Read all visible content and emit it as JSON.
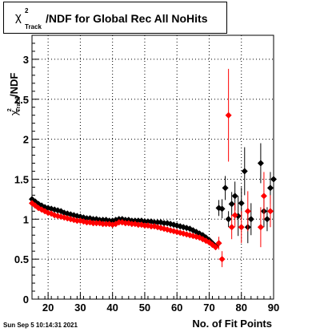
{
  "title": {
    "chi_symbol": "χ",
    "superscript": "2",
    "subscript": "Track",
    "main": "/NDF for Global Rec All NoHits"
  },
  "footer": {
    "timestamp": "Sun Sep  5 10:14:31 2021"
  },
  "chart_data": {
    "type": "scatter",
    "xlabel": "No. of Fit Points",
    "ylabel": {
      "symbol": "χ",
      "superscript": "2",
      "subscript": "Track",
      "suffix": "/NDF"
    },
    "xlim": [
      15,
      90
    ],
    "ylim": [
      0,
      3.3
    ],
    "x_ticks": [
      20,
      30,
      40,
      50,
      60,
      70,
      80,
      90
    ],
    "y_ticks": [
      0,
      0.5,
      1,
      1.5,
      2,
      2.5,
      3
    ],
    "y_tick_labels": [
      "0",
      "0.5",
      "1",
      "1.5",
      "2",
      "2.5",
      "3"
    ],
    "grid": true,
    "series": [
      {
        "color": "#000000",
        "points": [
          [
            15,
            1.25
          ],
          [
            16,
            1.22
          ],
          [
            17,
            1.19
          ],
          [
            18,
            1.17
          ],
          [
            19,
            1.15
          ],
          [
            20,
            1.14
          ],
          [
            21,
            1.13
          ],
          [
            22,
            1.12
          ],
          [
            23,
            1.11
          ],
          [
            24,
            1.1
          ],
          [
            25,
            1.08
          ],
          [
            26,
            1.07
          ],
          [
            27,
            1.06
          ],
          [
            28,
            1.05
          ],
          [
            29,
            1.04
          ],
          [
            30,
            1.03
          ],
          [
            31,
            1.02
          ],
          [
            32,
            1.01
          ],
          [
            33,
            1.01
          ],
          [
            34,
            1.0
          ],
          [
            35,
            1.0
          ],
          [
            36,
            0.99
          ],
          [
            37,
            0.99
          ],
          [
            38,
            0.99
          ],
          [
            39,
            0.98
          ],
          [
            40,
            0.98
          ],
          [
            41,
            0.99
          ],
          [
            42,
            1.0
          ],
          [
            43,
            1.0
          ],
          [
            44,
            0.99
          ],
          [
            45,
            0.99
          ],
          [
            46,
            0.98
          ],
          [
            47,
            0.98
          ],
          [
            48,
            0.98
          ],
          [
            49,
            0.98
          ],
          [
            50,
            0.97
          ],
          [
            51,
            0.97
          ],
          [
            52,
            0.97
          ],
          [
            53,
            0.96
          ],
          [
            54,
            0.96
          ],
          [
            55,
            0.96
          ],
          [
            56,
            0.95
          ],
          [
            57,
            0.95
          ],
          [
            58,
            0.94
          ],
          [
            59,
            0.93
          ],
          [
            60,
            0.92
          ],
          [
            61,
            0.91
          ],
          [
            62,
            0.9
          ],
          [
            63,
            0.89
          ],
          [
            64,
            0.88
          ],
          [
            65,
            0.86
          ],
          [
            66,
            0.84
          ],
          [
            67,
            0.82
          ],
          [
            68,
            0.8
          ],
          [
            69,
            0.77
          ],
          [
            70,
            0.74
          ],
          [
            71,
            0.7
          ],
          [
            72,
            0.66
          ],
          [
            73,
            1.14
          ],
          [
            74,
            1.13
          ],
          [
            75,
            1.39
          ],
          [
            76,
            1.0
          ],
          [
            77,
            1.19
          ],
          [
            78,
            1.29
          ],
          [
            79,
            1.04
          ],
          [
            80,
            1.2
          ],
          [
            81,
            1.6
          ],
          [
            82,
            0.9
          ],
          [
            83,
            1.0
          ],
          [
            86,
            1.7
          ],
          [
            87,
            1.1
          ],
          [
            88,
            1.0
          ],
          [
            89,
            1.39
          ],
          [
            90,
            1.5
          ]
        ],
        "errors": [
          [
            73,
            0.1
          ],
          [
            74,
            0.12
          ],
          [
            75,
            0.15
          ],
          [
            76,
            0.1
          ],
          [
            77,
            0.15
          ],
          [
            78,
            0.18
          ],
          [
            79,
            0.25
          ],
          [
            80,
            0.2
          ],
          [
            81,
            0.3
          ],
          [
            82,
            0.2
          ],
          [
            83,
            0.2
          ],
          [
            86,
            0.25
          ],
          [
            87,
            0.2
          ],
          [
            88,
            0.15
          ],
          [
            89,
            0.2
          ],
          [
            90,
            0.2
          ]
        ]
      },
      {
        "color": "#ff0000",
        "points": [
          [
            15,
            1.2
          ],
          [
            16,
            1.17
          ],
          [
            17,
            1.14
          ],
          [
            18,
            1.12
          ],
          [
            19,
            1.1
          ],
          [
            20,
            1.08
          ],
          [
            21,
            1.07
          ],
          [
            22,
            1.05
          ],
          [
            23,
            1.04
          ],
          [
            24,
            1.03
          ],
          [
            25,
            1.02
          ],
          [
            26,
            1.01
          ],
          [
            27,
            1.0
          ],
          [
            28,
            0.99
          ],
          [
            29,
            0.98
          ],
          [
            30,
            0.98
          ],
          [
            31,
            0.97
          ],
          [
            32,
            0.96
          ],
          [
            33,
            0.96
          ],
          [
            34,
            0.95
          ],
          [
            35,
            0.95
          ],
          [
            36,
            0.95
          ],
          [
            37,
            0.94
          ],
          [
            38,
            0.94
          ],
          [
            39,
            0.94
          ],
          [
            40,
            0.93
          ],
          [
            41,
            0.94
          ],
          [
            42,
            0.96
          ],
          [
            43,
            0.96
          ],
          [
            44,
            0.95
          ],
          [
            45,
            0.95
          ],
          [
            46,
            0.94
          ],
          [
            47,
            0.94
          ],
          [
            48,
            0.93
          ],
          [
            49,
            0.93
          ],
          [
            50,
            0.92
          ],
          [
            51,
            0.92
          ],
          [
            52,
            0.91
          ],
          [
            53,
            0.91
          ],
          [
            54,
            0.9
          ],
          [
            55,
            0.89
          ],
          [
            56,
            0.88
          ],
          [
            57,
            0.87
          ],
          [
            58,
            0.86
          ],
          [
            59,
            0.85
          ],
          [
            60,
            0.84
          ],
          [
            61,
            0.83
          ],
          [
            62,
            0.82
          ],
          [
            63,
            0.81
          ],
          [
            64,
            0.8
          ],
          [
            65,
            0.79
          ],
          [
            66,
            0.78
          ],
          [
            67,
            0.77
          ],
          [
            68,
            0.75
          ],
          [
            69,
            0.73
          ],
          [
            70,
            0.71
          ],
          [
            71,
            0.68
          ],
          [
            72,
            0.65
          ],
          [
            73,
            0.7
          ],
          [
            74,
            0.5
          ],
          [
            76,
            2.3
          ],
          [
            77,
            0.9
          ],
          [
            78,
            1.05
          ],
          [
            80,
            0.9
          ],
          [
            82,
            1.1
          ],
          [
            86,
            0.9
          ],
          [
            87,
            1.29
          ],
          [
            89,
            1.1
          ]
        ],
        "errors": [
          [
            73,
            0.08
          ],
          [
            74,
            0.1
          ],
          [
            76,
            0.58
          ],
          [
            77,
            0.15
          ],
          [
            78,
            0.15
          ],
          [
            80,
            0.2
          ],
          [
            82,
            0.25
          ],
          [
            86,
            0.25
          ],
          [
            87,
            0.3
          ],
          [
            89,
            0.2
          ]
        ]
      }
    ]
  }
}
